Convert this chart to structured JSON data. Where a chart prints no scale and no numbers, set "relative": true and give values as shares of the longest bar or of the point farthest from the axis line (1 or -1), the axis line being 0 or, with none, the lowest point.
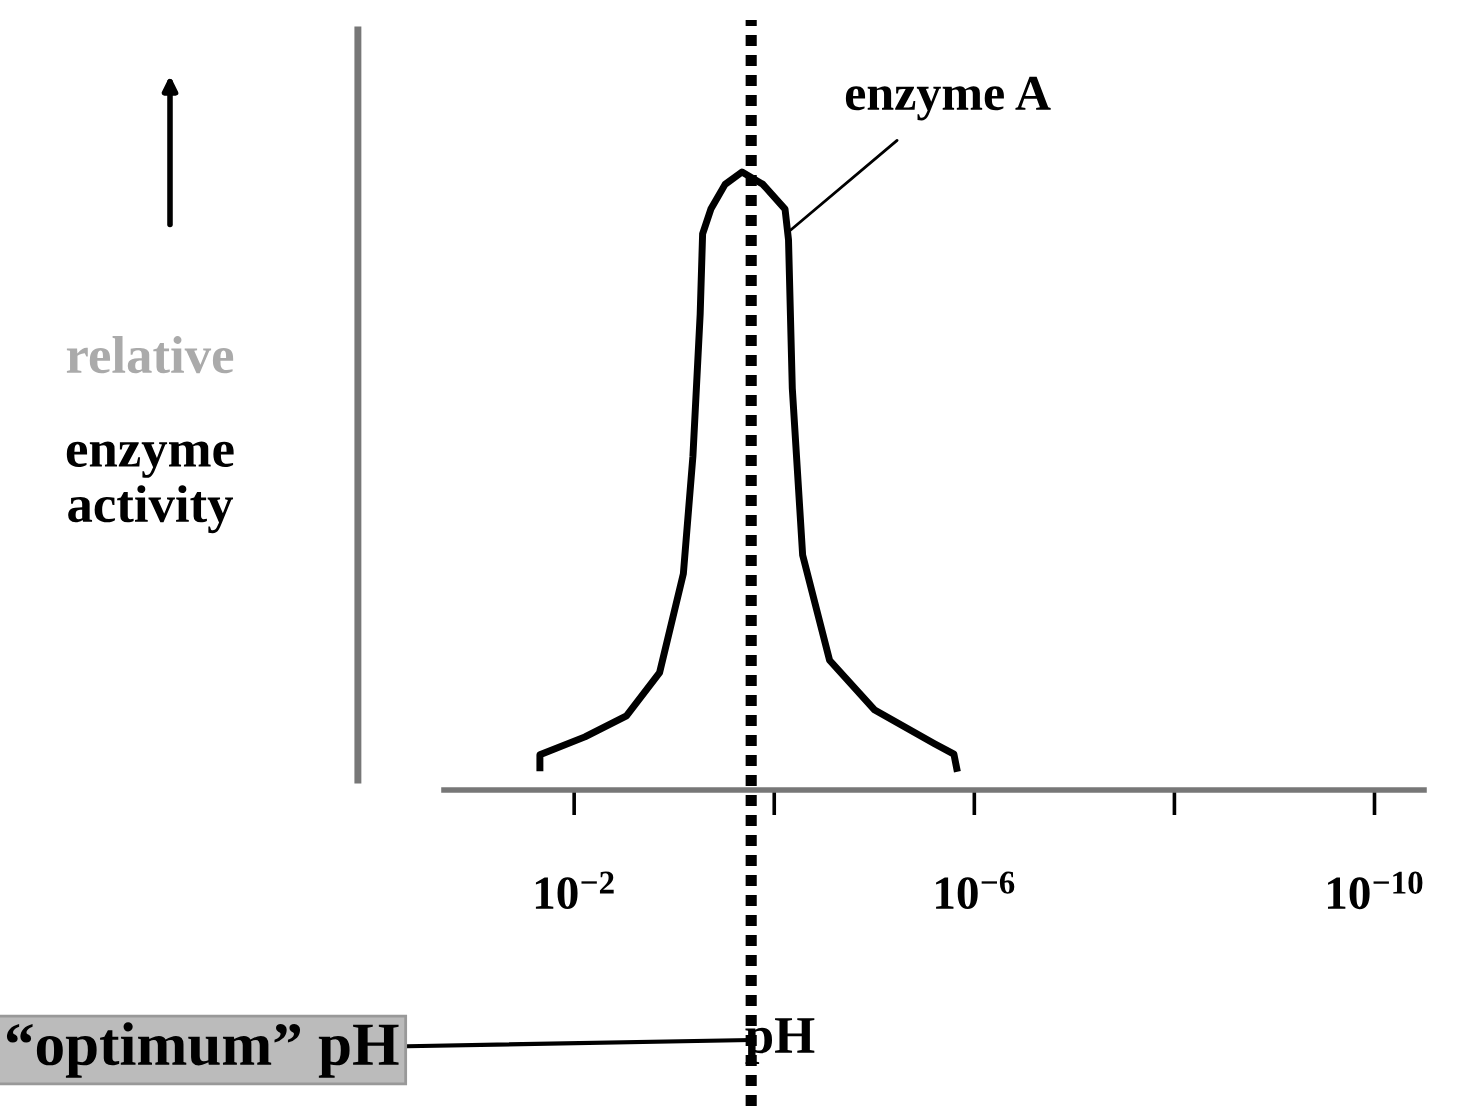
{
  "chart_data": {
    "type": "line",
    "relative": true,
    "xlabel": "pH",
    "ylabel": "relative enzyme activity",
    "log": "x",
    "xlim": [
      0.2,
      3.2e-11
    ],
    "xticks": [
      {
        "value": 0.01,
        "label": "10$^{−2}$"
      },
      {
        "value": 0.0001,
        "label": null
      },
      {
        "value": 1e-06,
        "label": "10$^{−6}$"
      },
      {
        "value": 1e-08,
        "label": null
      },
      {
        "value": 1e-10,
        "label": "10$^{−10}$"
      }
    ],
    "series": [
      {
        "color": "#000000",
        "x": [
          0.022,
          0.022,
          0.0078,
          0.003,
          0.0014,
          0.00081,
          0.00065,
          0.00055,
          0.00052,
          0.00043,
          0.00031,
          0.00021,
          0.00013,
          7.8e-05,
          7.2e-05,
          6.6e-05,
          5.2e-05,
          2.8e-05,
          1e-05,
          2.5e-06,
          1.6e-06,
          1.5e-06
        ],
        "values": [
          0.036,
          0.057,
          0.086,
          0.12,
          0.19,
          0.35,
          0.54,
          0.77,
          0.9,
          0.94,
          0.98,
          1.0,
          0.98,
          0.94,
          0.89,
          0.65,
          0.38,
          0.21,
          0.13,
          0.075,
          0.058,
          0.035
        ]
      }
    ],
    "ref_lines": [
      {
        "axis": "x",
        "value": 0.00017,
        "label": "“optimum” pH",
        "color": "#000000",
        "line_style": "dotted"
      }
    ],
    "annotations": [
      {
        "text": "enzyme A",
        "x": 7.6e-05,
        "y": 0.9
      }
    ],
    "marker": "none",
    "line_style": "solid",
    "grid": false,
    "legend": false
  }
}
